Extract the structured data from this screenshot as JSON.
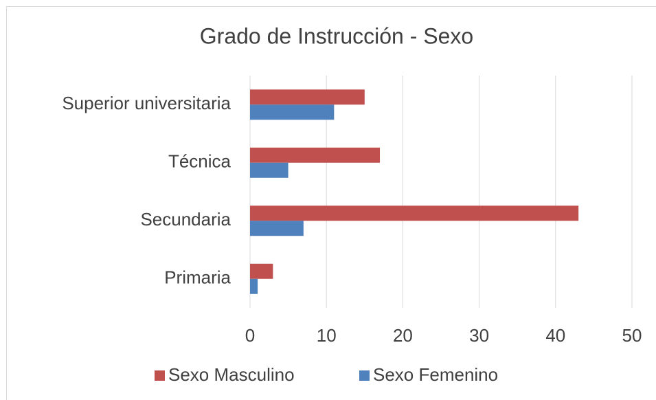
{
  "chart_data": {
    "type": "hbar",
    "title": "Grado de Instrucción - Sexo",
    "categories": [
      "Superior universitaria",
      "Técnica",
      "Secundaria",
      "Primaria"
    ],
    "series": [
      {
        "name": "Sexo Masculino",
        "color": "#c0504d",
        "values": [
          15,
          17,
          43,
          3
        ]
      },
      {
        "name": "Sexo Femenino",
        "color": "#4f81bd",
        "values": [
          11,
          5,
          7,
          1
        ]
      }
    ],
    "xlim": [
      0,
      50
    ],
    "xticks": [
      0,
      10,
      20,
      30,
      40,
      50
    ],
    "grid": true,
    "legend": "bottom"
  }
}
